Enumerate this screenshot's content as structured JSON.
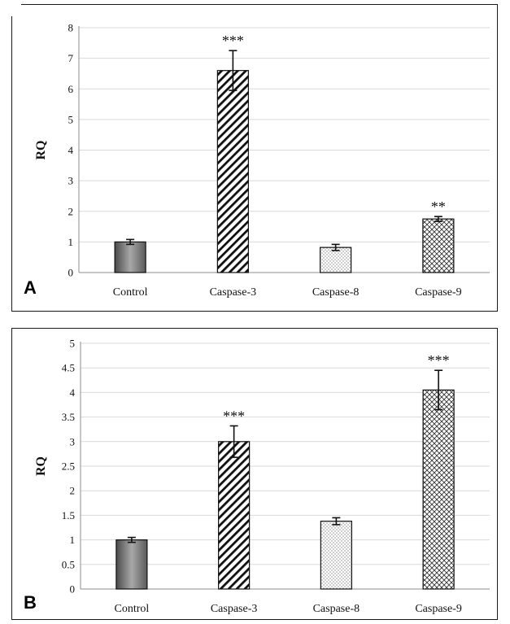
{
  "chart_data": [
    {
      "type": "bar",
      "panel_label": "A",
      "categories": [
        "Control",
        "Caspase-3",
        "Caspase-8",
        "Caspase-9"
      ],
      "values": [
        1.0,
        6.6,
        0.82,
        1.75
      ],
      "errors": [
        0.08,
        0.65,
        0.1,
        0.08
      ],
      "significance": [
        "",
        "***",
        "",
        "**"
      ],
      "patterns": [
        "gradient",
        "diagonal",
        "dots",
        "crosshatch"
      ],
      "ylabel": "RQ",
      "ylim": [
        0,
        8
      ],
      "yticks": [
        "0",
        "1",
        "2",
        "3",
        "4",
        "5",
        "6",
        "7",
        "8"
      ],
      "grid": true
    },
    {
      "type": "bar",
      "panel_label": "B",
      "categories": [
        "Control",
        "Caspase-3",
        "Caspase-8",
        "Caspase-9"
      ],
      "values": [
        1.0,
        3.0,
        1.38,
        4.05
      ],
      "errors": [
        0.05,
        0.32,
        0.07,
        0.4
      ],
      "significance": [
        "",
        "***",
        "",
        "***"
      ],
      "patterns": [
        "gradient",
        "diagonal",
        "dots",
        "crosshatch"
      ],
      "ylabel": "RQ",
      "ylim": [
        0,
        5
      ],
      "yticks": [
        "0",
        "0.5",
        "1",
        "1.5",
        "2",
        "2.5",
        "3",
        "3.5",
        "4",
        "4.5",
        "5"
      ],
      "grid": true
    }
  ]
}
